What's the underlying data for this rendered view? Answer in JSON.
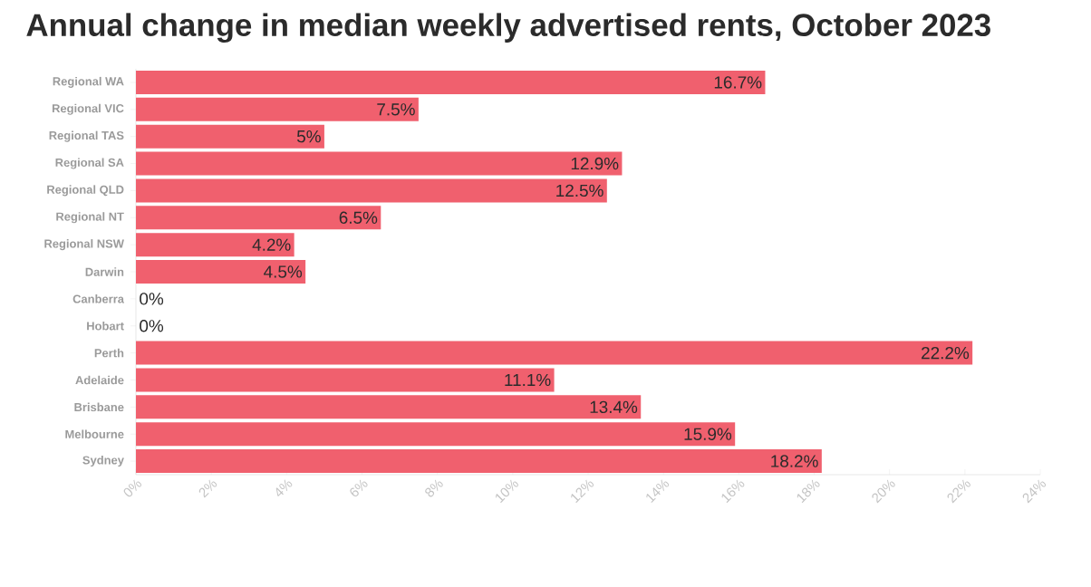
{
  "chart_data": {
    "type": "bar",
    "orientation": "horizontal",
    "title": "Annual change in median weekly advertised rents, October 2023",
    "categories": [
      "Regional WA",
      "Regional VIC",
      "Regional TAS",
      "Regional SA",
      "Regional QLD",
      "Regional NT",
      "Regional NSW",
      "Darwin",
      "Canberra",
      "Hobart",
      "Perth",
      "Adelaide",
      "Brisbane",
      "Melbourne",
      "Sydney"
    ],
    "values": [
      16.7,
      7.5,
      5,
      12.9,
      12.5,
      6.5,
      4.2,
      4.5,
      0,
      0,
      22.2,
      11.1,
      13.4,
      15.9,
      18.2
    ],
    "value_labels": [
      "16.7%",
      "7.5%",
      "5%",
      "12.9%",
      "12.5%",
      "6.5%",
      "4.2%",
      "4.5%",
      "0%",
      "0%",
      "22.2%",
      "11.1%",
      "13.4%",
      "15.9%",
      "18.2%"
    ],
    "color": "#f0606e",
    "xlim": [
      0,
      24
    ],
    "xticks": [
      {
        "value": 0,
        "label": "0%"
      },
      {
        "value": 2,
        "label": "2%"
      },
      {
        "value": 4,
        "label": "4%"
      },
      {
        "value": 6,
        "label": "6%"
      },
      {
        "value": 8,
        "label": "8%"
      },
      {
        "value": 10,
        "label": "10%"
      },
      {
        "value": 12,
        "label": "12%"
      },
      {
        "value": 14,
        "label": "14%"
      },
      {
        "value": 16,
        "label": "16%"
      },
      {
        "value": 18,
        "label": "18%"
      },
      {
        "value": 20,
        "label": "20%"
      },
      {
        "value": 22,
        "label": "22%"
      },
      {
        "value": 24,
        "label": "24%"
      }
    ],
    "grid": false
  }
}
